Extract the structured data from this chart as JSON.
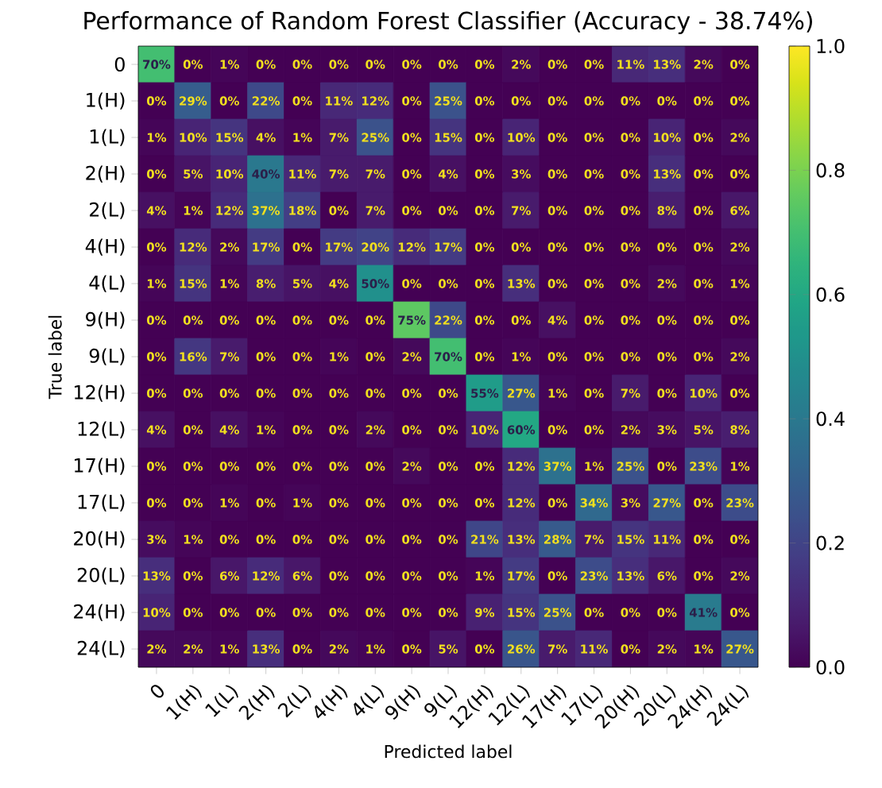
{
  "chart_data": {
    "type": "heatmap",
    "title": "Performance of Random Forest Classifier (Accuracy -  38.74%)",
    "xlabel": "Predicted label",
    "ylabel": "True label",
    "categories": [
      "0",
      "1(H)",
      "1(L)",
      "2(H)",
      "2(L)",
      "4(H)",
      "4(L)",
      "9(H)",
      "9(L)",
      "12(H)",
      "12(L)",
      "17(H)",
      "17(L)",
      "20(H)",
      "20(L)",
      "24(H)",
      "24(L)"
    ],
    "y_categories": [
      "0",
      "1(H)",
      "1(L)",
      "2(H)",
      "2(L)",
      "4(H)",
      "4(L)",
      "9(H)",
      "9(L)",
      "12(H)",
      "12(L)",
      "17(H)",
      "17(L)",
      "20(H)",
      "20(L)",
      "24(H)",
      "24(L)"
    ],
    "cells": [
      [
        0.7,
        0,
        0.01,
        0,
        0,
        0,
        0,
        0,
        0,
        0,
        0.02,
        0,
        0,
        0.11,
        0.13,
        0.02,
        0
      ],
      [
        0,
        0.29,
        0,
        0.22,
        0,
        0.11,
        0.12,
        0,
        0.25,
        0,
        0,
        0,
        0,
        0,
        0,
        0,
        0
      ],
      [
        0.01,
        0.1,
        0.15,
        0.04,
        0.01,
        0.07,
        0.25,
        0,
        0.15,
        0,
        0.1,
        0,
        0,
        0,
        0.1,
        0,
        0.02
      ],
      [
        0,
        0.05,
        0.1,
        0.4,
        0.11,
        0.07,
        0.07,
        0,
        0.04,
        0,
        0.03,
        0,
        0,
        0,
        0.13,
        0,
        0
      ],
      [
        0.04,
        0.01,
        0.12,
        0.37,
        0.18,
        0,
        0.07,
        0,
        0,
        0,
        0.07,
        0,
        0,
        0,
        0.08,
        0,
        0.06
      ],
      [
        0,
        0.12,
        0.02,
        0.17,
        0,
        0.17,
        0.2,
        0.12,
        0.17,
        0,
        0,
        0,
        0,
        0,
        0,
        0,
        0.02
      ],
      [
        0.01,
        0.15,
        0.01,
        0.08,
        0.05,
        0.04,
        0.5,
        0,
        0,
        0,
        0.13,
        0,
        0,
        0,
        0.02,
        0,
        0.01
      ],
      [
        0,
        0,
        0,
        0,
        0,
        0,
        0,
        0.75,
        0.22,
        0,
        0,
        0.04,
        0,
        0,
        0,
        0,
        0
      ],
      [
        0,
        0.16,
        0.07,
        0,
        0,
        0.01,
        0,
        0.02,
        0.7,
        0,
        0.01,
        0,
        0,
        0,
        0,
        0,
        0.02
      ],
      [
        0,
        0,
        0,
        0,
        0,
        0,
        0,
        0,
        0,
        0.55,
        0.27,
        0.01,
        0,
        0.07,
        0,
        0.1,
        0
      ],
      [
        0.04,
        0,
        0.04,
        0.01,
        0,
        0,
        0.02,
        0,
        0,
        0.1,
        0.6,
        0,
        0,
        0.02,
        0.03,
        0.05,
        0.08
      ],
      [
        0,
        0,
        0,
        0,
        0,
        0,
        0,
        0.02,
        0,
        0,
        0.12,
        0.37,
        0.01,
        0.25,
        0,
        0.23,
        0.01
      ],
      [
        0,
        0,
        0.01,
        0,
        0.01,
        0,
        0,
        0,
        0,
        0,
        0.12,
        0,
        0.34,
        0.03,
        0.27,
        0,
        0.23
      ],
      [
        0.03,
        0.01,
        0,
        0,
        0,
        0,
        0,
        0,
        0,
        0.21,
        0.13,
        0.28,
        0.07,
        0.15,
        0.11,
        0,
        0
      ],
      [
        0.13,
        0,
        0.06,
        0.12,
        0.06,
        0,
        0,
        0,
        0,
        0.01,
        0.17,
        0,
        0.23,
        0.13,
        0.06,
        0,
        0.02
      ],
      [
        0.1,
        0,
        0,
        0,
        0,
        0,
        0,
        0,
        0,
        0.09,
        0.15,
        0.25,
        0,
        0,
        0,
        0.41,
        0
      ],
      [
        0.02,
        0.02,
        0.01,
        0.13,
        0,
        0.02,
        0.01,
        0,
        0.05,
        0,
        0.26,
        0.07,
        0.11,
        0,
        0.02,
        0.01,
        0.27
      ]
    ],
    "cell_labels": [
      [
        "70%",
        "0%",
        "1%",
        "0%",
        "0%",
        "0%",
        "0%",
        "0%",
        "0%",
        "0%",
        "2%",
        "0%",
        "0%",
        "11%",
        "13%",
        "2%",
        "0%"
      ],
      [
        "0%",
        "29%",
        "0%",
        "22%",
        "0%",
        "11%",
        "12%",
        "0%",
        "25%",
        "0%",
        "0%",
        "0%",
        "0%",
        "0%",
        "0%",
        "0%",
        "0%"
      ],
      [
        "1%",
        "10%",
        "15%",
        "4%",
        "1%",
        "7%",
        "25%",
        "0%",
        "15%",
        "0%",
        "10%",
        "0%",
        "0%",
        "0%",
        "10%",
        "0%",
        "2%"
      ],
      [
        "0%",
        "5%",
        "10%",
        "40%",
        "11%",
        "7%",
        "7%",
        "0%",
        "4%",
        "0%",
        "3%",
        "0%",
        "0%",
        "0%",
        "13%",
        "0%",
        "0%"
      ],
      [
        "4%",
        "1%",
        "12%",
        "37%",
        "18%",
        "0%",
        "7%",
        "0%",
        "0%",
        "0%",
        "7%",
        "0%",
        "0%",
        "0%",
        "8%",
        "0%",
        "6%"
      ],
      [
        "0%",
        "12%",
        "2%",
        "17%",
        "0%",
        "17%",
        "20%",
        "12%",
        "17%",
        "0%",
        "0%",
        "0%",
        "0%",
        "0%",
        "0%",
        "0%",
        "2%"
      ],
      [
        "1%",
        "15%",
        "1%",
        "8%",
        "5%",
        "4%",
        "50%",
        "0%",
        "0%",
        "0%",
        "13%",
        "0%",
        "0%",
        "0%",
        "2%",
        "0%",
        "1%"
      ],
      [
        "0%",
        "0%",
        "0%",
        "0%",
        "0%",
        "0%",
        "0%",
        "75%",
        "22%",
        "0%",
        "0%",
        "4%",
        "0%",
        "0%",
        "0%",
        "0%",
        "0%"
      ],
      [
        "0%",
        "16%",
        "7%",
        "0%",
        "0%",
        "1%",
        "0%",
        "2%",
        "70%",
        "0%",
        "1%",
        "0%",
        "0%",
        "0%",
        "0%",
        "0%",
        "2%"
      ],
      [
        "0%",
        "0%",
        "0%",
        "0%",
        "0%",
        "0%",
        "0%",
        "0%",
        "0%",
        "55%",
        "27%",
        "1%",
        "0%",
        "7%",
        "0%",
        "10%",
        "0%"
      ],
      [
        "4%",
        "0%",
        "4%",
        "1%",
        "0%",
        "0%",
        "2%",
        "0%",
        "0%",
        "10%",
        "60%",
        "0%",
        "0%",
        "2%",
        "3%",
        "5%",
        "8%"
      ],
      [
        "0%",
        "0%",
        "0%",
        "0%",
        "0%",
        "0%",
        "0%",
        "2%",
        "0%",
        "0%",
        "12%",
        "37%",
        "1%",
        "25%",
        "0%",
        "23%",
        "1%"
      ],
      [
        "0%",
        "0%",
        "1%",
        "0%",
        "1%",
        "0%",
        "0%",
        "0%",
        "0%",
        "0%",
        "12%",
        "0%",
        "34%",
        "3%",
        "27%",
        "0%",
        "23%"
      ],
      [
        "3%",
        "1%",
        "0%",
        "0%",
        "0%",
        "0%",
        "0%",
        "0%",
        "0%",
        "21%",
        "13%",
        "28%",
        "7%",
        "15%",
        "11%",
        "0%",
        "0%"
      ],
      [
        "13%",
        "0%",
        "6%",
        "12%",
        "6%",
        "0%",
        "0%",
        "0%",
        "0%",
        "1%",
        "17%",
        "0%",
        "23%",
        "13%",
        "6%",
        "0%",
        "2%"
      ],
      [
        "10%",
        "0%",
        "0%",
        "0%",
        "0%",
        "0%",
        "0%",
        "0%",
        "0%",
        "9%",
        "15%",
        "25%",
        "0%",
        "0%",
        "0%",
        "41%",
        "0%"
      ],
      [
        "2%",
        "2%",
        "1%",
        "13%",
        "0%",
        "2%",
        "1%",
        "0%",
        "5%",
        "0%",
        "26%",
        "7%",
        "11%",
        "0%",
        "2%",
        "1%",
        "27%"
      ]
    ],
    "clim": [
      0,
      1
    ],
    "cticks": [
      {
        "value": 0,
        "label": "0.0"
      },
      {
        "value": 0.2,
        "label": "0.2"
      },
      {
        "value": 0.4,
        "label": "0.4"
      },
      {
        "value": 0.6,
        "label": "0.6"
      },
      {
        "value": 0.8,
        "label": "0.8"
      },
      {
        "value": 1,
        "label": "1.0"
      }
    ]
  }
}
